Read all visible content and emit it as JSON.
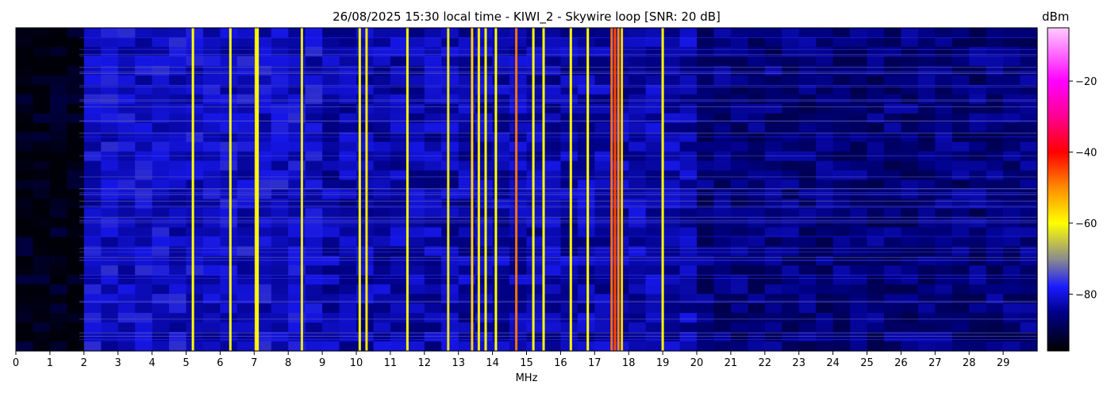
{
  "chart_data": {
    "type": "heatmap",
    "title": "26/08/2025 15:30 local time - KIWI_2 - Skywire loop [SNR: 20 dB]",
    "xlabel": "MHz",
    "ylabel": "",
    "x_range": [
      0,
      30
    ],
    "x_ticks": [
      "0",
      "1",
      "2",
      "3",
      "4",
      "5",
      "6",
      "7",
      "8",
      "9",
      "10",
      "11",
      "12",
      "13",
      "14",
      "15",
      "16",
      "17",
      "18",
      "19",
      "20",
      "21",
      "22",
      "23",
      "24",
      "25",
      "26",
      "27",
      "28",
      "29"
    ],
    "colorbar": {
      "label": "dBm",
      "range": [
        -96,
        -5
      ],
      "ticks": [
        -20,
        -40,
        -60,
        -80
      ],
      "colormap": [
        {
          "value": -96,
          "color": "#000000"
        },
        {
          "value": -85,
          "color": "#00008b"
        },
        {
          "value": -78,
          "color": "#1a1aff"
        },
        {
          "value": -70,
          "color": "#8c8c8c"
        },
        {
          "value": -60,
          "color": "#ffff00"
        },
        {
          "value": -50,
          "color": "#ff8c00"
        },
        {
          "value": -40,
          "color": "#ff0000"
        },
        {
          "value": -30,
          "color": "#ff0090"
        },
        {
          "value": -20,
          "color": "#ff00ff"
        },
        {
          "value": -5,
          "color": "#ffccff"
        }
      ]
    },
    "signals": [
      {
        "mhz": 5.2,
        "level": -60
      },
      {
        "mhz": 6.3,
        "level": -60
      },
      {
        "mhz": 7.05,
        "level": -58
      },
      {
        "mhz": 7.1,
        "level": -60
      },
      {
        "mhz": 8.4,
        "level": -62
      },
      {
        "mhz": 10.1,
        "level": -60
      },
      {
        "mhz": 10.3,
        "level": -58
      },
      {
        "mhz": 11.5,
        "level": -60
      },
      {
        "mhz": 12.7,
        "level": -62
      },
      {
        "mhz": 13.4,
        "level": -56
      },
      {
        "mhz": 13.6,
        "level": -58
      },
      {
        "mhz": 13.8,
        "level": -60
      },
      {
        "mhz": 14.1,
        "level": -60
      },
      {
        "mhz": 14.7,
        "level": -48
      },
      {
        "mhz": 15.2,
        "level": -60
      },
      {
        "mhz": 15.5,
        "level": -60
      },
      {
        "mhz": 16.3,
        "level": -60
      },
      {
        "mhz": 16.8,
        "level": -60
      },
      {
        "mhz": 17.5,
        "level": -48
      },
      {
        "mhz": 17.6,
        "level": -45
      },
      {
        "mhz": 17.7,
        "level": -50
      },
      {
        "mhz": 17.8,
        "level": -56
      },
      {
        "mhz": 19.0,
        "level": -60
      }
    ]
  }
}
